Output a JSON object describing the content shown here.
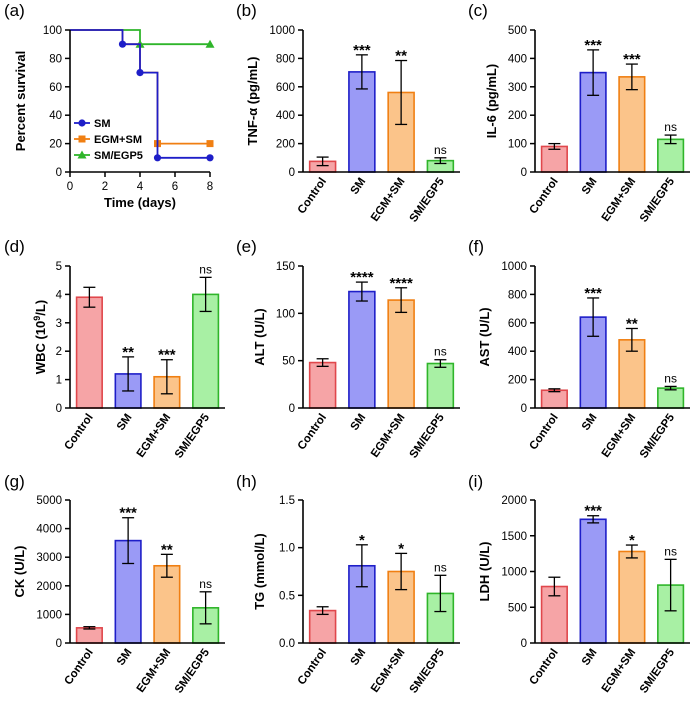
{
  "figure": {
    "colors": {
      "control_fill": "#f6a4a6",
      "control_stroke": "#e0474c",
      "sm_fill": "#9a9af6",
      "sm_stroke": "#1e1ec8",
      "egm_fill": "#fbc48a",
      "egm_stroke": "#f07f12",
      "egp5_fill": "#a8f0a4",
      "egp5_stroke": "#2fb52a",
      "axis": "#000000"
    }
  },
  "chart_data": [
    {
      "panel": "(a)",
      "type": "line",
      "step": true,
      "xlabel": "Time (days)",
      "ylabel": "Percent survival",
      "xlim": [
        0,
        8
      ],
      "ylim": [
        0,
        100
      ],
      "xticks": [
        "0",
        "2",
        "4",
        "6",
        "8"
      ],
      "yticks": [
        "0",
        "20",
        "40",
        "60",
        "80",
        "100"
      ],
      "legend_position": "bottom-left",
      "series": [
        {
          "name": "SM",
          "marker": "circle",
          "color": "#1e1ec8",
          "x": [
            0,
            3,
            3,
            4,
            4,
            5,
            5,
            8
          ],
          "y": [
            100,
            100,
            90,
            90,
            70,
            70,
            10,
            10
          ],
          "markers_x": [
            3,
            4,
            5,
            8
          ],
          "markers_y": [
            90,
            70,
            10,
            10
          ]
        },
        {
          "name": "EGM+SM",
          "marker": "square",
          "color": "#f07f12",
          "x": [
            0,
            3,
            3,
            4,
            4,
            5,
            5,
            8
          ],
          "y": [
            100,
            100,
            90,
            90,
            70,
            70,
            20,
            20
          ],
          "markers_x": [
            5,
            8
          ],
          "markers_y": [
            20,
            20
          ]
        },
        {
          "name": "SM/EGP5",
          "marker": "triangle",
          "color": "#2fb52a",
          "x": [
            0,
            4,
            4,
            8
          ],
          "y": [
            100,
            100,
            90,
            90
          ],
          "markers_x": [
            4,
            8
          ],
          "markers_y": [
            90,
            90
          ]
        }
      ]
    },
    {
      "panel": "(b)",
      "type": "bar",
      "ylabel": "TNF-α (pg/mL)",
      "ylim": [
        0,
        1000
      ],
      "yticks": [
        "0",
        "200",
        "400",
        "600",
        "800",
        "1000"
      ],
      "categories": [
        "Control",
        "SM",
        "EGM+SM",
        "SM/EGP5"
      ],
      "values": [
        75,
        705,
        560,
        80
      ],
      "errors": [
        30,
        120,
        225,
        20
      ],
      "significance": [
        "",
        "***",
        "**",
        "ns"
      ]
    },
    {
      "panel": "(c)",
      "type": "bar",
      "ylabel": "IL-6 (pg/mL)",
      "ylim": [
        0,
        500
      ],
      "yticks": [
        "0",
        "100",
        "200",
        "300",
        "400",
        "500"
      ],
      "categories": [
        "Control",
        "SM",
        "EGM+SM",
        "SM/EGP5"
      ],
      "values": [
        90,
        350,
        335,
        115
      ],
      "errors": [
        10,
        80,
        45,
        15
      ],
      "significance": [
        "",
        "***",
        "***",
        "ns"
      ]
    },
    {
      "panel": "(d)",
      "type": "bar",
      "ylabel": "WBC (10",
      "ylabel_sup": "9",
      "ylabel_tail": "/L)",
      "ylim": [
        0,
        5
      ],
      "yticks": [
        "0",
        "1",
        "2",
        "3",
        "4",
        "5"
      ],
      "categories": [
        "Control",
        "SM",
        "EGM+SM",
        "SM/EGP5"
      ],
      "values": [
        3.9,
        1.2,
        1.1,
        4.0
      ],
      "errors": [
        0.35,
        0.6,
        0.6,
        0.6
      ],
      "significance": [
        "",
        "**",
        "***",
        "ns"
      ]
    },
    {
      "panel": "(e)",
      "type": "bar",
      "ylabel": "ALT (U/L)",
      "ylim": [
        0,
        150
      ],
      "yticks": [
        "0",
        "50",
        "100",
        "150"
      ],
      "categories": [
        "Control",
        "SM",
        "EGM+SM",
        "SM/EGP5"
      ],
      "values": [
        48,
        123,
        114,
        47
      ],
      "errors": [
        4,
        10,
        13,
        4
      ],
      "significance": [
        "",
        "****",
        "****",
        "ns"
      ]
    },
    {
      "panel": "(f)",
      "type": "bar",
      "ylabel": "AST (U/L)",
      "ylim": [
        0,
        1000
      ],
      "yticks": [
        "0",
        "200",
        "400",
        "600",
        "800",
        "1000"
      ],
      "categories": [
        "Control",
        "SM",
        "EGM+SM",
        "SM/EGP5"
      ],
      "values": [
        125,
        640,
        480,
        140
      ],
      "errors": [
        10,
        135,
        80,
        12
      ],
      "significance": [
        "",
        "***",
        "**",
        "ns"
      ]
    },
    {
      "panel": "(g)",
      "type": "bar",
      "ylabel": "CK (U/L)",
      "ylim": [
        0,
        5000
      ],
      "yticks": [
        "0",
        "1000",
        "2000",
        "3000",
        "4000",
        "5000"
      ],
      "categories": [
        "Control",
        "SM",
        "EGM+SM",
        "SM/EGP5"
      ],
      "values": [
        530,
        3580,
        2700,
        1230
      ],
      "errors": [
        40,
        800,
        400,
        560
      ],
      "significance": [
        "",
        "***",
        "**",
        "ns"
      ]
    },
    {
      "panel": "(h)",
      "type": "bar",
      "ylabel": "TG (mmol/L)",
      "ylim": [
        0,
        1.5
      ],
      "yticks": [
        "0.0",
        "0.5",
        "1.0",
        "1.5"
      ],
      "categories": [
        "Control",
        "SM",
        "EGM+SM",
        "SM/EGP5"
      ],
      "values": [
        0.34,
        0.81,
        0.75,
        0.52
      ],
      "errors": [
        0.04,
        0.22,
        0.19,
        0.19
      ],
      "significance": [
        "",
        "*",
        "*",
        "ns"
      ]
    },
    {
      "panel": "(i)",
      "type": "bar",
      "ylabel": "LDH (U/L)",
      "ylim": [
        0,
        2000
      ],
      "yticks": [
        "0",
        "500",
        "1000",
        "1500",
        "2000"
      ],
      "categories": [
        "Control",
        "SM",
        "EGM+SM",
        "SM/EGP5"
      ],
      "values": [
        790,
        1730,
        1280,
        810
      ],
      "errors": [
        130,
        50,
        90,
        360
      ],
      "significance": [
        "",
        "***",
        "*",
        "ns"
      ]
    }
  ]
}
